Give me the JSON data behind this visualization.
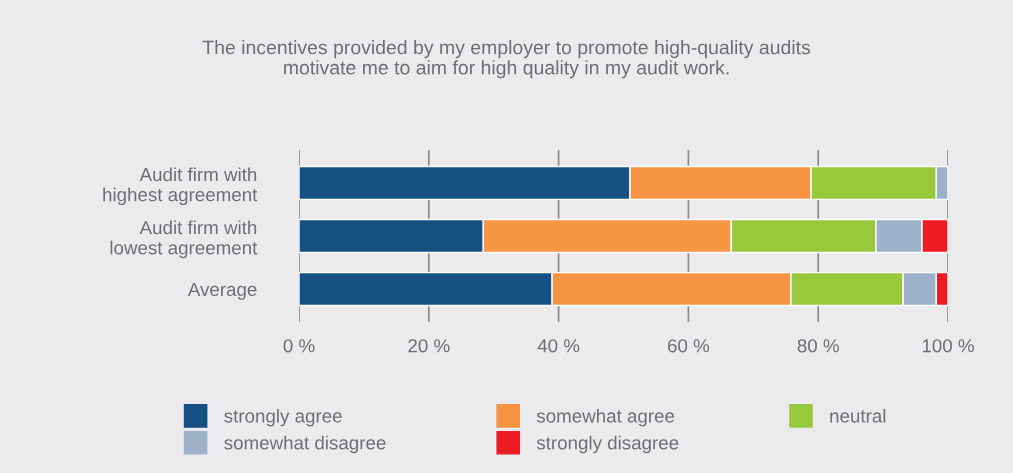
{
  "chart_data": {
    "type": "bar",
    "orientation": "horizontal",
    "stacked": true,
    "title": "The incentives provided by my employer to promote high-quality audits\nmotivate me to aim for high quality in my audit work.",
    "categories": [
      "Audit firm with\nhighest agreement",
      "Audit firm with\nlowest agreement",
      "Average"
    ],
    "series": [
      {
        "name": "strongly agree",
        "color": "#155082",
        "values": [
          51.0,
          28.4,
          39.0
        ]
      },
      {
        "name": "somewhat agree",
        "color": "#f79444",
        "values": [
          27.9,
          38.2,
          36.8
        ]
      },
      {
        "name": "neutral",
        "color": "#98c93c",
        "values": [
          19.3,
          22.3,
          17.3
        ]
      },
      {
        "name": "somewhat disagree",
        "color": "#9db2c9",
        "values": [
          1.8,
          7.1,
          5.1
        ]
      },
      {
        "name": "strongly disagree",
        "color": "#ed1c24",
        "values": [
          null,
          4.0,
          1.8
        ]
      }
    ],
    "xlim": [
      0,
      100
    ],
    "xticks": [
      {
        "value": 0,
        "label": "0 %"
      },
      {
        "value": 20,
        "label": "20 %"
      },
      {
        "value": 40,
        "label": "40 %"
      },
      {
        "value": 60,
        "label": "60 %"
      },
      {
        "value": 80,
        "label": "80 %"
      },
      {
        "value": 100,
        "label": "100 %"
      }
    ],
    "grid": "x",
    "legend": "bottom"
  }
}
